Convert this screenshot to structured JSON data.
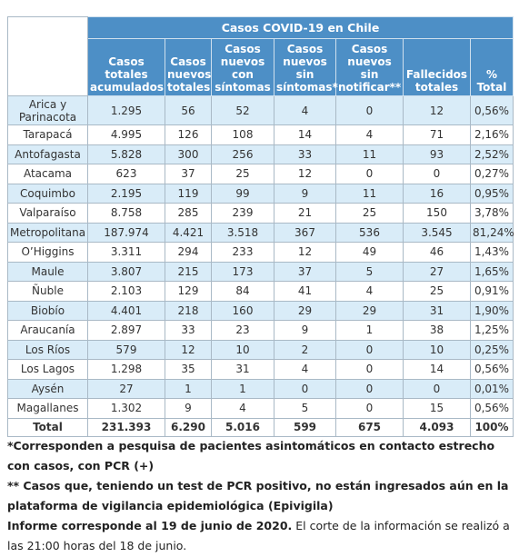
{
  "table": {
    "title": "Casos COVID-19 en Chile",
    "columns": [
      "Casos totales acumulados",
      "Casos nuevos totales",
      "Casos nuevos con síntomas",
      "Casos nuevos sin síntomas*",
      "Casos nuevos sin notificar**",
      "Fallecidos totales",
      "% Total"
    ],
    "rows": [
      [
        "Arica y Parinacota",
        "1.295",
        "56",
        "52",
        "4",
        "0",
        "12",
        "0,56%"
      ],
      [
        "Tarapacá",
        "4.995",
        "126",
        "108",
        "14",
        "4",
        "71",
        "2,16%"
      ],
      [
        "Antofagasta",
        "5.828",
        "300",
        "256",
        "33",
        "11",
        "93",
        "2,52%"
      ],
      [
        "Atacama",
        "623",
        "37",
        "25",
        "12",
        "0",
        "0",
        "0,27%"
      ],
      [
        "Coquimbo",
        "2.195",
        "119",
        "99",
        "9",
        "11",
        "16",
        "0,95%"
      ],
      [
        "Valparaíso",
        "8.758",
        "285",
        "239",
        "21",
        "25",
        "150",
        "3,78%"
      ],
      [
        "Metropolitana",
        "187.974",
        "4.421",
        "3.518",
        "367",
        "536",
        "3.545",
        "81,24%"
      ],
      [
        "O’Higgins",
        "3.311",
        "294",
        "233",
        "12",
        "49",
        "46",
        "1,43%"
      ],
      [
        "Maule",
        "3.807",
        "215",
        "173",
        "37",
        "5",
        "27",
        "1,65%"
      ],
      [
        "Ñuble",
        "2.103",
        "129",
        "84",
        "41",
        "4",
        "25",
        "0,91%"
      ],
      [
        "Biobío",
        "4.401",
        "218",
        "160",
        "29",
        "29",
        "31",
        "1,90%"
      ],
      [
        "Araucanía",
        "2.897",
        "33",
        "23",
        "9",
        "1",
        "38",
        "1,25%"
      ],
      [
        "Los Ríos",
        "579",
        "12",
        "10",
        "2",
        "0",
        "10",
        "0,25%"
      ],
      [
        "Los Lagos",
        "1.298",
        "35",
        "31",
        "4",
        "0",
        "14",
        "0,56%"
      ],
      [
        "Aysén",
        "27",
        "1",
        "1",
        "0",
        "0",
        "0",
        "0,01%"
      ],
      [
        "Magallanes",
        "1.302",
        "9",
        "4",
        "5",
        "0",
        "15",
        "0,56%"
      ]
    ],
    "total": [
      "Total",
      "231.393",
      "6.290",
      "5.016",
      "599",
      "675",
      "4.093",
      "100%"
    ]
  },
  "notes": [
    "*Corresponden a pesquisa de pacientes asintomáticos en contacto estrecho con casos, con PCR (+)",
    "** Casos que, teniendo un test de PCR positivo, no están ingresados aún en la plataforma de vigilancia epidemiológica (Epivigila)"
  ],
  "footer": {
    "bold": "Informe corresponde al 19 de junio de 2020.",
    "text": "El corte de la información se realizó a las 21:00 horas del 18 de junio."
  }
}
